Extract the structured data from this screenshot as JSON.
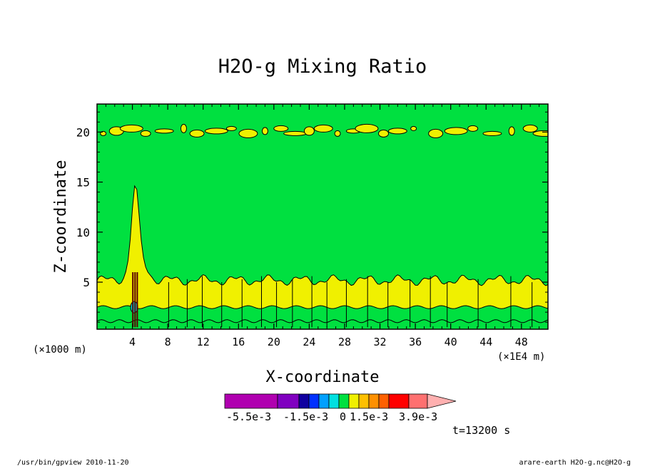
{
  "chart_data": {
    "type": "heatmap",
    "title": "H2O-g Mixing Ratio",
    "xlabel": "X-coordinate",
    "ylabel": "Z-coordinate",
    "x_unit_left": "(×1000 m)",
    "x_unit_right": "(×1E4 m)",
    "xlim": [
      0,
      51
    ],
    "ylim": [
      0.3,
      22.8
    ],
    "x_ticks": [
      4,
      8,
      12,
      16,
      20,
      24,
      28,
      32,
      36,
      40,
      44,
      48
    ],
    "y_ticks": [
      5,
      10,
      15,
      20
    ],
    "grid": false,
    "time_label": "t=13200 s",
    "colorbar": {
      "levels": [
        -0.0055,
        -0.0015,
        0,
        0.0015,
        0.0039
      ],
      "tick_labels": [
        "-5.5e-3",
        "-1.5e-3",
        "0",
        "1.5e-3",
        "3.9e-3"
      ],
      "colors": [
        "#b000b0",
        "#8000c0",
        "#1000a0",
        "#0030ff",
        "#00a0ff",
        "#00e0e0",
        "#00e040",
        "#f0f000",
        "#ffc000",
        "#ff9000",
        "#ff6000",
        "#ff0000",
        "#ff7070",
        "#ffb0b0"
      ]
    },
    "field_colors": {
      "high": "#00e040",
      "mid": "#f0f000",
      "low": "#00e0e0"
    }
  },
  "footer": {
    "left": "/usr/bin/gpview  2010-11-20",
    "right": "arare-earth_H2O-g.nc@H2O-g"
  }
}
